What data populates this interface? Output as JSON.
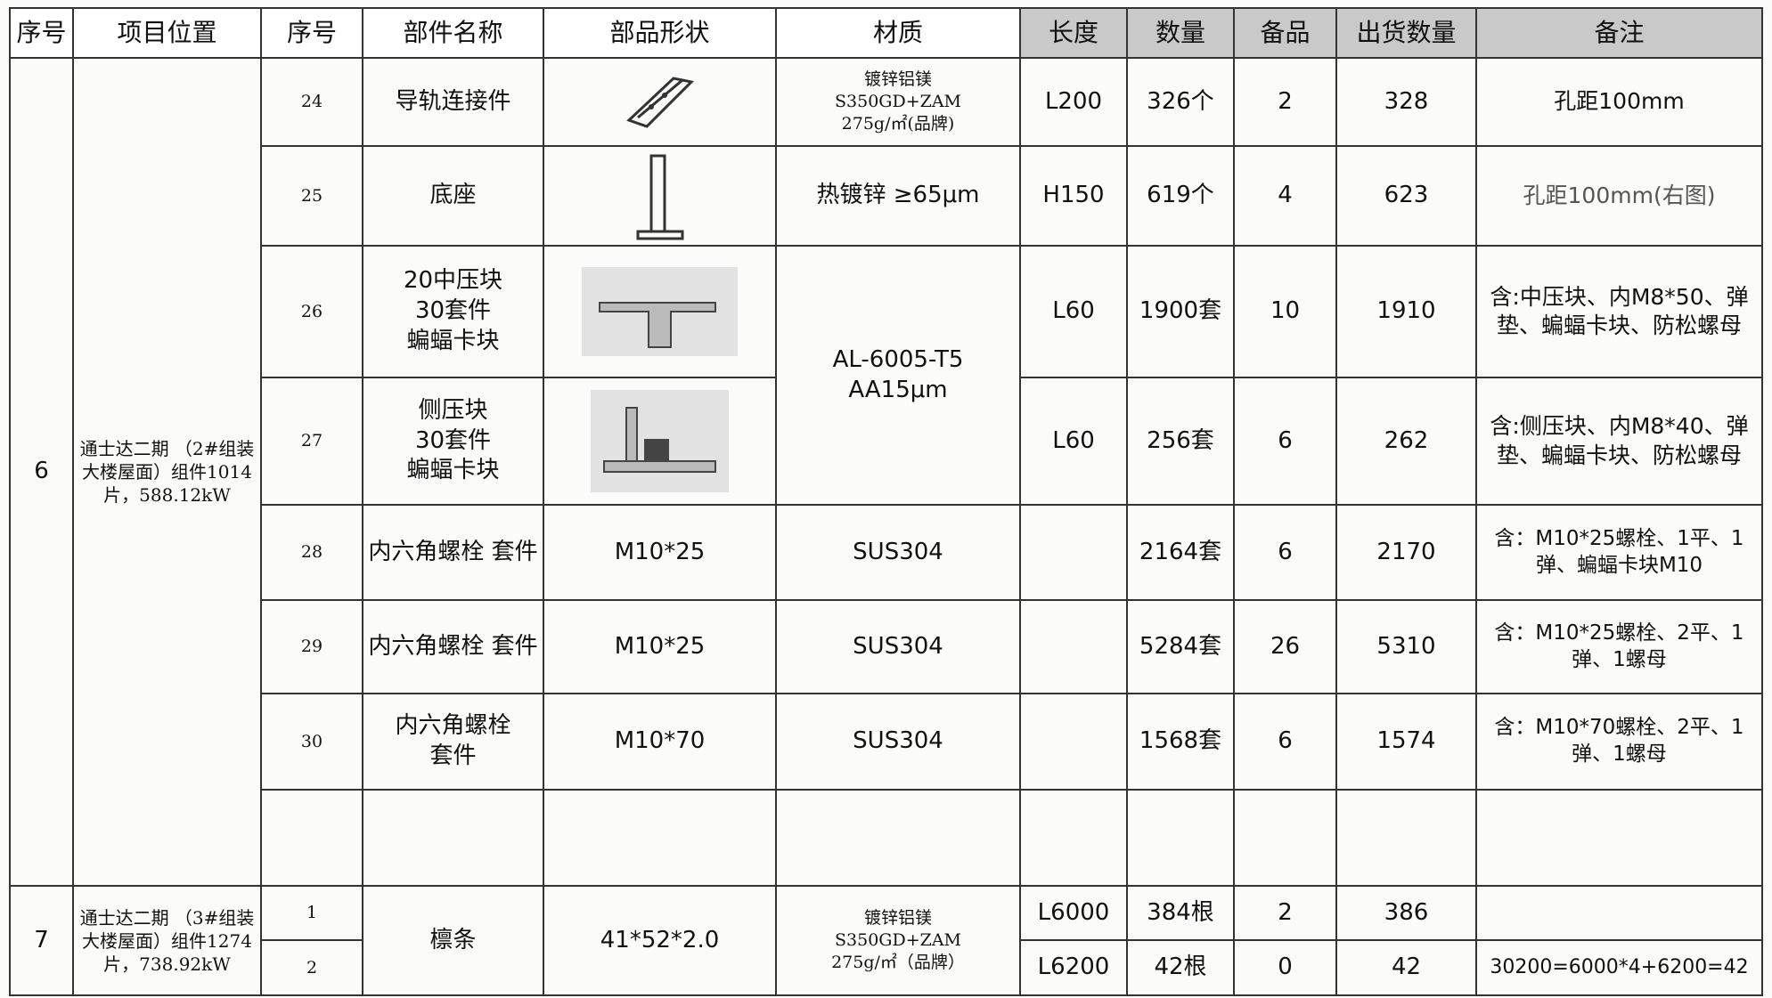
{
  "header": [
    "序号",
    "项目位置",
    "序号",
    "部件名称",
    "部品形状",
    "材质",
    "长度",
    "数量",
    "备品",
    "出货数量",
    "备注"
  ],
  "groups": [
    {
      "no": "6",
      "location": "通士达二期 （2#组装大楼屋面）组件1014片，588.12kW",
      "items": [
        {
          "no": "24",
          "name": "导轨连接件",
          "material": "镀锌铝镁\nS350GD+ZAM\n275g/㎡(品牌)",
          "length": "L200",
          "qty": "326个",
          "spare": "2",
          "shipped": "328",
          "note": "孔距100mm"
        },
        {
          "no": "25",
          "name": "底座",
          "material": "热镀锌 ≥65μm",
          "length": "H150",
          "qty": "619个",
          "spare": "4",
          "shipped": "623",
          "note": "孔距100mm(右图)"
        },
        {
          "no": "26",
          "name": "20中压块\n30套件\n蝙蝠卡块",
          "material": "AL-6005-T5\nAA15μm",
          "length": "L60",
          "qty": "1900套",
          "spare": "10",
          "shipped": "1910",
          "note": "含:中压块、内M8*50、弹垫、蝙蝠卡块、防松螺母"
        },
        {
          "no": "27",
          "name": "侧压块\n30套件\n蝙蝠卡块",
          "length": "L60",
          "qty": "256套",
          "spare": "6",
          "shipped": "262",
          "note": "含:侧压块、内M8*40、弹垫、蝙蝠卡块、防松螺母"
        },
        {
          "no": "28",
          "name": "内六角螺栓 套件",
          "shape": "M10*25",
          "material": "SUS304",
          "qty": "2164套",
          "spare": "6",
          "shipped": "2170",
          "note": "含：M10*25螺栓、1平、1弹、蝙蝠卡块M10"
        },
        {
          "no": "29",
          "name": "内六角螺栓 套件",
          "shape": "M10*25",
          "material": "SUS304",
          "qty": "5284套",
          "spare": "26",
          "shipped": "5310",
          "note": "含：M10*25螺栓、2平、1弹、1螺母"
        },
        {
          "no": "30",
          "name": "内六角螺栓\n套件",
          "shape": "M10*70",
          "material": "SUS304",
          "qty": "1568套",
          "spare": "6",
          "shipped": "1574",
          "note": "含：M10*70螺栓、2平、1弹、1螺母"
        }
      ]
    },
    {
      "no": "7",
      "location": "通士达二期 （3#组装大楼屋面）组件1274片，738.92kW",
      "name": "檩条",
      "shape": "41*52*2.0",
      "material": "镀锌铝镁\nS350GD+ZAM\n275g/㎡（品牌）",
      "items": [
        {
          "no": "1",
          "length": "L6000",
          "qty": "384根",
          "spare": "2",
          "shipped": "386"
        },
        {
          "no": "2",
          "length": "L6200",
          "qty": "42根",
          "spare": "0",
          "shipped": "42",
          "note": "30200=6000*4+6200=42"
        }
      ]
    }
  ]
}
